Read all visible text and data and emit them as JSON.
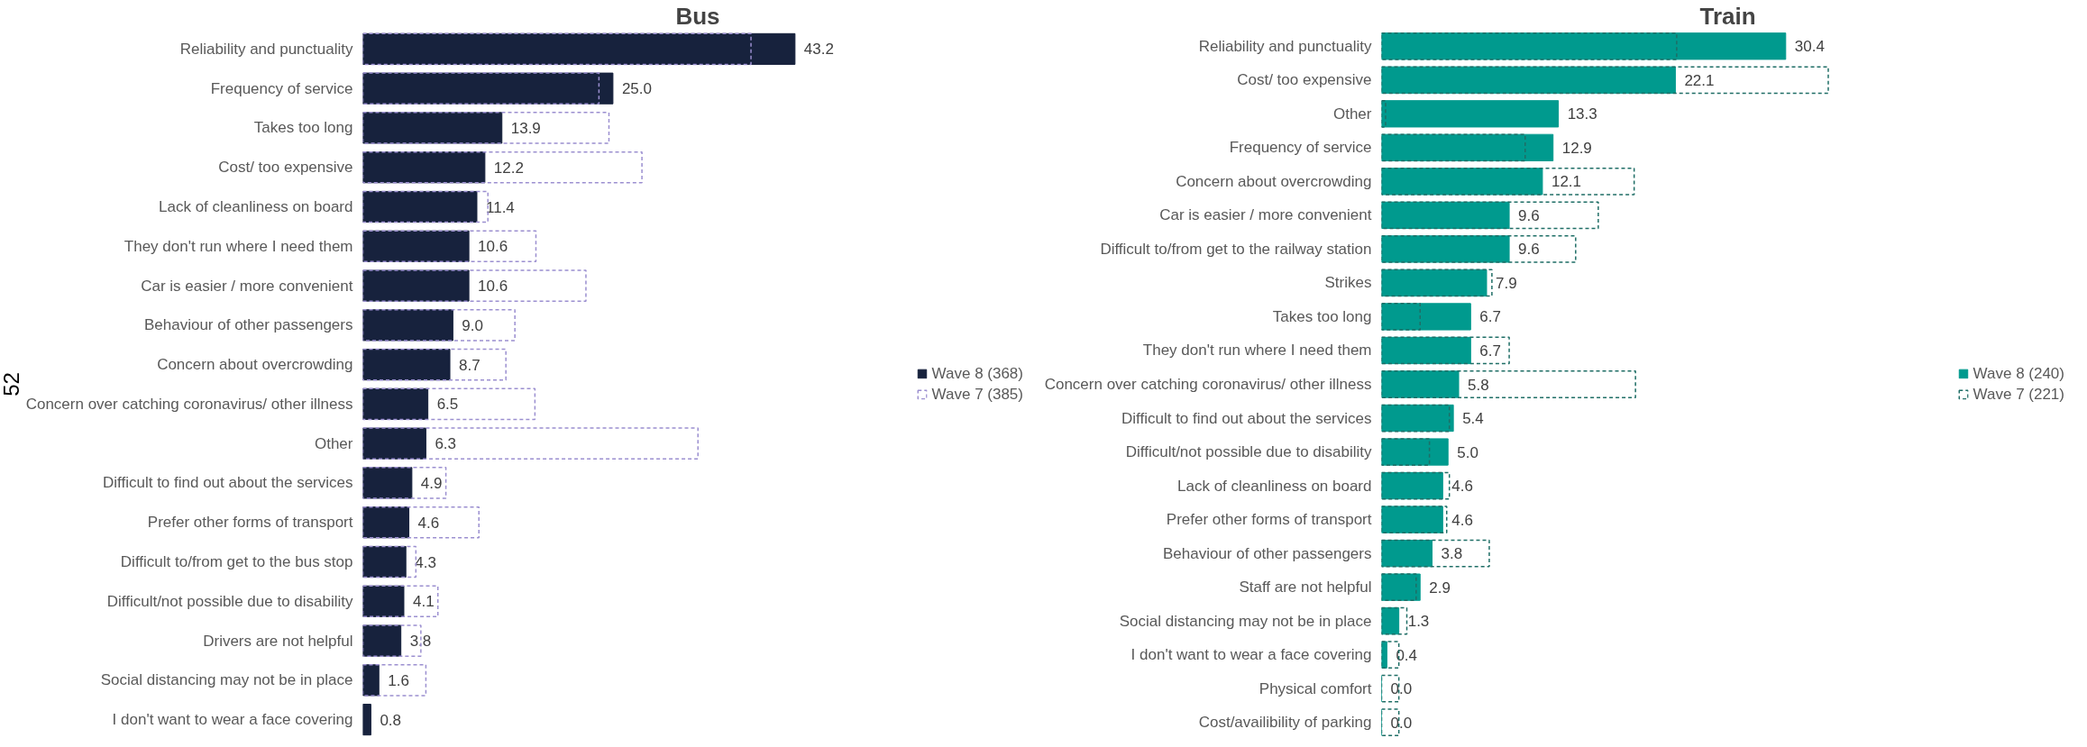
{
  "chart_data": [
    {
      "type": "bar",
      "orientation": "horizontal",
      "title": "Bus",
      "legend": "right",
      "grid": false,
      "tick_labels": "y",
      "annotations": [
        "52"
      ],
      "categories": [
        "Reliability and punctuality",
        "Frequency of service",
        "Takes too long",
        "Cost/ too expensive",
        "Lack of cleanliness on board",
        "They don't run where I need them",
        "Car is easier / more convenient",
        "Behaviour of other passengers",
        "Concern about overcrowding",
        "Concern over catching coronavirus/ other illness",
        "Other",
        "Difficult to find out about the services",
        "Prefer other forms of transport",
        "Difficult to/from get to the bus stop",
        "Difficult/not possible due to disability",
        "Drivers are not helpful",
        "Social distancing may not be in place",
        "I don't want to wear a face covering"
      ],
      "series": [
        {
          "name": "Wave 8 (368)",
          "color": "#17223d",
          "line_style": "solid",
          "values": [
            43.2,
            25.0,
            13.9,
            12.2,
            11.4,
            10.6,
            10.6,
            9.0,
            8.7,
            6.5,
            6.3,
            4.9,
            4.6,
            4.3,
            4.1,
            3.8,
            1.6,
            0.8
          ],
          "value_labels": [
            "43.2",
            "25.0",
            "13.9",
            "12.2",
            "11.4",
            "10.6",
            "10.6",
            "9.0",
            "8.7",
            "6.5",
            "6.3",
            "4.9",
            "4.6",
            "4.3",
            "4.1",
            "3.8",
            "1.6",
            "0.8"
          ]
        },
        {
          "name": "Wave 7 (385)",
          "color": "#9b8fd0",
          "line_style": "dashed",
          "values": [
            38.8,
            23.6,
            24.6,
            27.9,
            12.5,
            17.3,
            22.3,
            15.2,
            14.3,
            17.2,
            33.5,
            8.3,
            11.6,
            5.3,
            7.5,
            5.8,
            6.3,
            null
          ]
        }
      ]
    },
    {
      "type": "bar",
      "orientation": "horizontal",
      "title": "Train",
      "legend": "right",
      "grid": false,
      "tick_labels": "y",
      "categories": [
        "Reliability and punctuality",
        "Cost/ too expensive",
        "Other",
        "Frequency of service",
        "Concern about overcrowding",
        "Car is easier / more convenient",
        "Difficult to/from get to the railway station",
        "Strikes",
        "Takes too long",
        "They don't run where I need them",
        "Concern over catching coronavirus/ other illness",
        "Difficult to find out about the services",
        "Difficult/not possible due to disability",
        "Lack of cleanliness on board",
        "Prefer other forms of transport",
        "Behaviour of other passengers",
        "Staff are not helpful",
        "Social distancing may not be in place",
        "I don't want to wear a face covering",
        "Physical comfort",
        "Cost/availibility of parking"
      ],
      "series": [
        {
          "name": "Wave 8 (240)",
          "color": "#009a8e",
          "line_style": "solid",
          "values": [
            30.4,
            22.1,
            13.3,
            12.9,
            12.1,
            9.6,
            9.6,
            7.9,
            6.7,
            6.7,
            5.8,
            5.4,
            5.0,
            4.6,
            4.6,
            3.8,
            2.9,
            1.3,
            0.4,
            0.0,
            0.0
          ],
          "value_labels": [
            "30.4",
            "22.1",
            "13.3",
            "12.9",
            "12.1",
            "9.6",
            "9.6",
            "7.9",
            "6.7",
            "6.7",
            "5.8",
            "5.4",
            "5.0",
            "4.6",
            "4.6",
            "3.8",
            "2.9",
            "1.3",
            "0.4",
            "0.0",
            "0.0"
          ]
        },
        {
          "name": "Wave 7 (221)",
          "color": "#1f6e66",
          "line_style": "dashed",
          "values": [
            22.2,
            33.6,
            0.3,
            10.8,
            19.0,
            16.3,
            14.6,
            8.3,
            2.9,
            9.6,
            19.1,
            5.1,
            3.6,
            5.1,
            4.9,
            8.1,
            2.6,
            1.9,
            1.3,
            1.3,
            1.3
          ]
        }
      ]
    }
  ]
}
